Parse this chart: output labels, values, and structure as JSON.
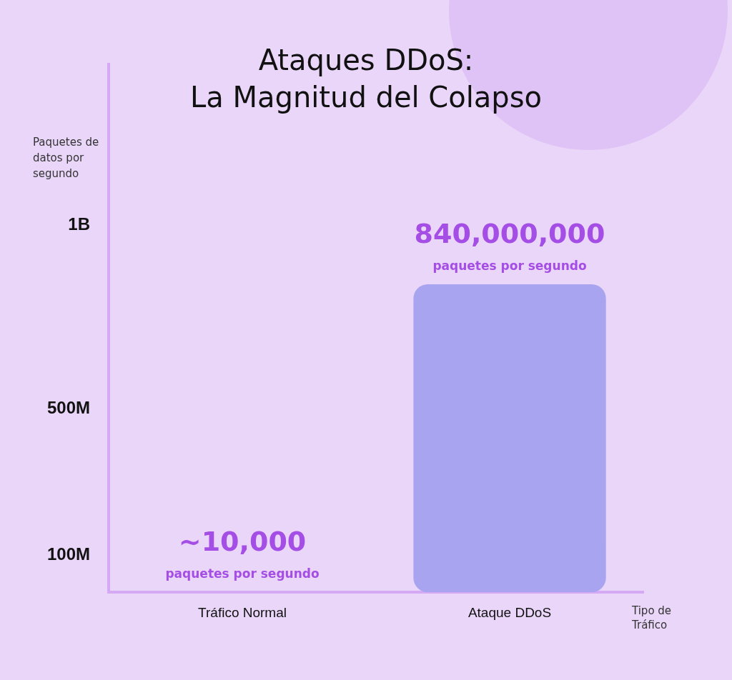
{
  "chart_data": {
    "type": "bar",
    "title": "Ataques DDoS:\nLa Magnitud del Colapso",
    "ylabel": "Paquetes de datos por segundo",
    "xlabel": "Tipo de Tráfico",
    "categories": [
      "Tráfico Normal",
      "Ataque DDoS"
    ],
    "values": [
      10000,
      840000000
    ],
    "colors": [
      "#8f9df0",
      "#a9a4f0"
    ],
    "value_labels": [
      "~10,000",
      "840,000,000"
    ],
    "annotations": [
      {
        "text": "paquetes por segundo",
        "x": "Tráfico Normal",
        "y": 10000
      },
      {
        "text": "paquetes por segundo",
        "x": "Ataque DDoS",
        "y": 840000000
      }
    ],
    "ylim": [
      0,
      1440000000
    ],
    "yticks": [
      {
        "value": 100000000,
        "label": "100M"
      },
      {
        "value": 500000000,
        "label": "500M"
      },
      {
        "value": 1000000000,
        "label": "1B"
      }
    ],
    "grid": false,
    "legend": false
  }
}
